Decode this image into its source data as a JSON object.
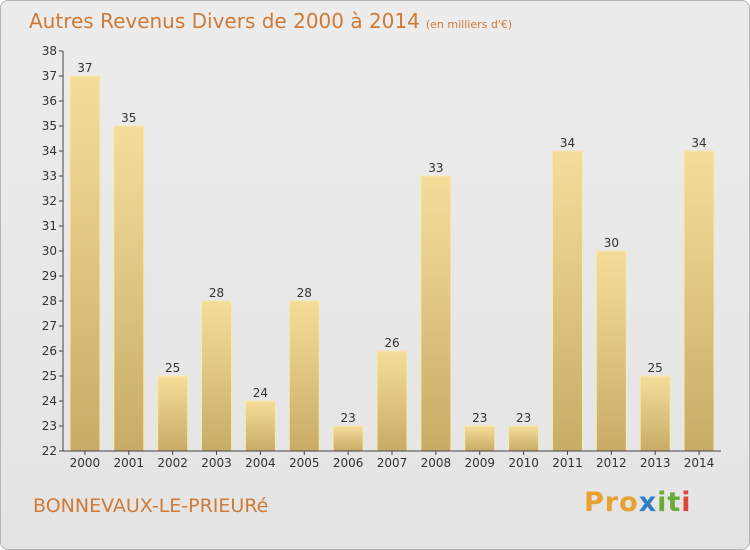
{
  "chart_data": {
    "type": "bar",
    "title": "Autres Revenus Divers de 2000 à 2014",
    "subtitle": "(en milliers d'€)",
    "categories": [
      "2000",
      "2001",
      "2002",
      "2003",
      "2004",
      "2005",
      "2006",
      "2007",
      "2008",
      "2009",
      "2010",
      "2011",
      "2012",
      "2013",
      "2014"
    ],
    "values": [
      37,
      35,
      25,
      28,
      24,
      28,
      23,
      26,
      33,
      23,
      23,
      34,
      30,
      25,
      34
    ],
    "ylim": [
      22,
      38
    ],
    "yticks": [
      22,
      23,
      24,
      25,
      26,
      27,
      28,
      29,
      30,
      31,
      32,
      33,
      34,
      35,
      36,
      37,
      38
    ],
    "grid": false,
    "legend": "none",
    "bar_color_light": "#f5dd99",
    "bar_color_dark": "#c8ac66"
  },
  "footer": {
    "commune": "BONNEVAUX-LE-PRIEURé",
    "logo_letters": [
      "P",
      "r",
      "o",
      "x",
      "i",
      "t",
      "i"
    ],
    "logo_colors": [
      "#e8a030",
      "#e8a030",
      "#e8a030",
      "#2f7fc1",
      "#6aab35",
      "#6aab35",
      "#e0453a"
    ]
  },
  "colors": {
    "title": "#d07a36",
    "axis": "#444444",
    "background": "#e8e8e8"
  }
}
